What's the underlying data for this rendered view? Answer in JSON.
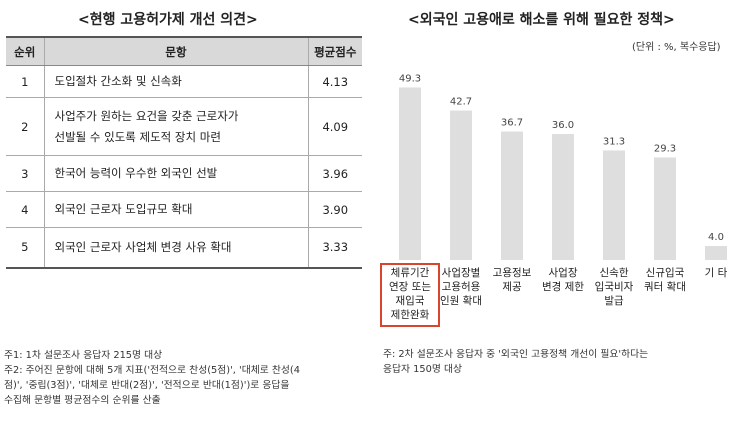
{
  "left": {
    "title": "<현행 고용허가제 개선 의견>",
    "headers": {
      "rank": "순위",
      "item": "문항",
      "score": "평균점수"
    },
    "rows": [
      {
        "rank": "1",
        "item_lines": [
          "도입절차 간소화 및 신속화"
        ],
        "score": "4.13"
      },
      {
        "rank": "2",
        "item_lines": [
          "사업주가 원하는 요건을 갖춘 근로자가",
          "선발될 수 있도록 제도적 장치 마련"
        ],
        "score": "4.09"
      },
      {
        "rank": "3",
        "item_lines": [
          "한국어 능력이 우수한 외국인 선발"
        ],
        "score": "3.96"
      },
      {
        "rank": "4",
        "item_lines": [
          "외국인 근로자 도입규모 확대"
        ],
        "score": "3.90"
      },
      {
        "rank": "5",
        "item_lines": [
          "외국인 근로자 사업체 변경 사유 확대"
        ],
        "score": "3.33"
      }
    ],
    "notes": [
      "주1: 1차 설문조사 응답자 215명 대상",
      "주2: 주어진 문항에 대해 5개 지표('전적으로 찬성(5점)', '대체로 찬성(4",
      "점)', '중립(3점)', '대체로 반대(2점)', '전적으로 반대(1점)')로 응답을",
      "수집해 문항별 평균점수의 순위를 산출"
    ]
  },
  "right": {
    "title": "<외국인 고용애로 해소를 위해 필요한 정책>",
    "unit": "(단위 : %, 복수응답)",
    "notes": [
      "주: 2차 설문조사 응답자 중 '외국인 고용정책 개선이 필요'하다는",
      "응답자 150명 대상"
    ]
  },
  "colors": {
    "bar": "#dedede",
    "highlight": "#d9442f",
    "header_bg": "#d9d9d9"
  },
  "chart_data": {
    "type": "bar",
    "categories": [
      [
        "체류기간",
        "연장 또는",
        "재입국",
        "제한완화"
      ],
      [
        "사업장별",
        "고용허용",
        "인원 확대"
      ],
      [
        "고용정보",
        "제공"
      ],
      [
        "사업장",
        "변경 제한"
      ],
      [
        "신속한",
        "입국비자",
        "발급"
      ],
      [
        "신규입국",
        "쿼터 확대"
      ],
      [
        "기 타"
      ]
    ],
    "values": [
      49.3,
      42.7,
      36.7,
      36.0,
      31.3,
      29.3,
      4.0
    ],
    "value_labels": [
      "49.3",
      "42.7",
      "36.7",
      "36.0",
      "31.3",
      "29.3",
      "4.0"
    ],
    "highlighted_index": 0,
    "ylim": [
      0,
      52
    ]
  }
}
